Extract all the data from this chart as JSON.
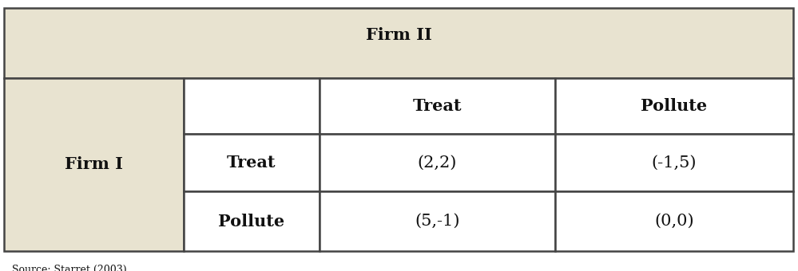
{
  "firm_ii_label": "Firm II",
  "firm_i_label": "Firm I",
  "col_headers": [
    "",
    "Treat",
    "Pollute"
  ],
  "row_headers": [
    "Treat",
    "Pollute"
  ],
  "cell_values": [
    [
      "(2,2)",
      "(-1,5)"
    ],
    [
      "(5,-1)",
      "(0,0)"
    ]
  ],
  "bg_color": "#e8e3d0",
  "white_color": "#ffffff",
  "border_color": "#444444",
  "text_color": "#111111",
  "source_text": "Source: Starret (2003)",
  "fig_bg": "#ffffff"
}
